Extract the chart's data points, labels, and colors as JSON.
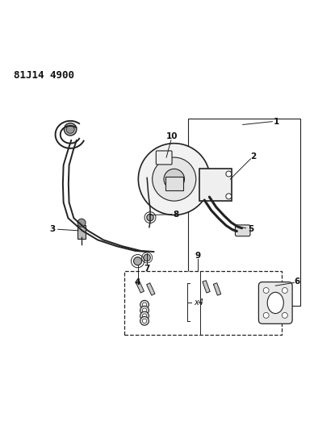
{
  "title_code": "81J14 4900",
  "bg_color": "#ffffff",
  "line_color": "#222222",
  "label_color": "#111111",
  "figsize": [
    3.89,
    5.33
  ],
  "dpi": 100
}
